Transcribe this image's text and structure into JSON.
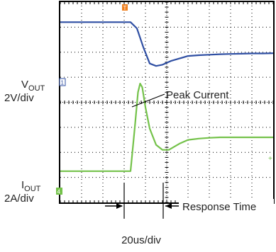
{
  "colors": {
    "vout": "#2f4fa3",
    "iout": "#74c24a",
    "grid": "#000000",
    "text": "#222222",
    "marker_orange": "#f08020"
  },
  "chart_data": {
    "type": "line",
    "xlabel": "20us/div",
    "xlim": [
      0,
      10
    ],
    "ylim": [
      0,
      8
    ],
    "grid": true,
    "series": [
      {
        "name": "VOUT",
        "color": "#2f4fa3",
        "x": [
          0,
          0.5,
          1,
          1.5,
          2,
          2.5,
          3,
          3.3,
          3.6,
          3.9,
          4.2,
          4.5,
          4.8,
          5.2,
          5.6,
          6.0,
          6.5,
          7.0,
          7.5,
          8.0,
          8.5,
          9.0,
          9.5,
          10
        ],
        "y": [
          7.2,
          7.2,
          7.2,
          7.2,
          7.2,
          7.2,
          7.2,
          7.2,
          6.95,
          6.2,
          5.55,
          5.45,
          5.5,
          5.65,
          5.75,
          5.85,
          5.88,
          5.9,
          5.92,
          5.93,
          5.94,
          5.95,
          5.95,
          5.96
        ]
      },
      {
        "name": "IOUT",
        "color": "#74c24a",
        "x": [
          0,
          0.5,
          1,
          1.5,
          2,
          2.5,
          3.0,
          3.3,
          3.5,
          3.65,
          3.75,
          3.85,
          4.0,
          4.2,
          4.5,
          4.8,
          5.1,
          5.3,
          5.6,
          6.0,
          6.5,
          7.0,
          7.5,
          8.0,
          8.5,
          9.0,
          9.5,
          10
        ],
        "y": [
          1.25,
          1.25,
          1.25,
          1.25,
          1.25,
          1.25,
          1.25,
          1.25,
          3.0,
          4.4,
          4.75,
          4.6,
          3.8,
          2.95,
          2.3,
          2.1,
          2.1,
          2.2,
          2.35,
          2.5,
          2.55,
          2.58,
          2.6,
          2.6,
          2.6,
          2.6,
          2.6,
          2.6
        ]
      }
    ],
    "channel_labels": {
      "vout": "V",
      "vout_sub": "OUT",
      "vout_scale": "2V/div",
      "iout": "I",
      "iout_sub": "OUT",
      "iout_scale": "2A/div"
    },
    "markers": {
      "ch1": "1",
      "ch4": "4",
      "trigger": "T"
    },
    "annotations": {
      "peak": "Peak Current",
      "response": "Response Time"
    }
  }
}
